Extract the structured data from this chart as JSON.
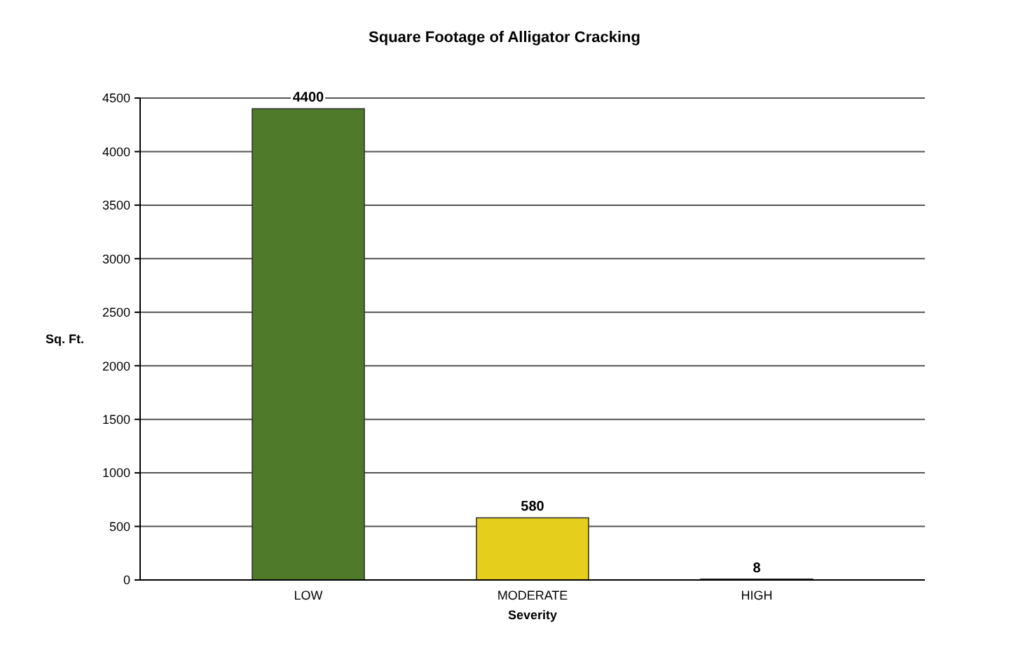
{
  "chart_data": {
    "type": "bar",
    "title": "Square Footage of Alligator Cracking",
    "xlabel": "Severity",
    "ylabel": "Sq. Ft.",
    "categories": [
      "LOW",
      "MODERATE",
      "HIGH"
    ],
    "values": [
      4400,
      580,
      8
    ],
    "colors": [
      "#4f7a2a",
      "#e6cf1c",
      "#d03a1a"
    ],
    "ylim": [
      0,
      4500
    ],
    "yticks": [
      0,
      500,
      1000,
      1500,
      2000,
      2500,
      3000,
      3500,
      4000,
      4500
    ],
    "grid": "y",
    "data_labels": true
  }
}
